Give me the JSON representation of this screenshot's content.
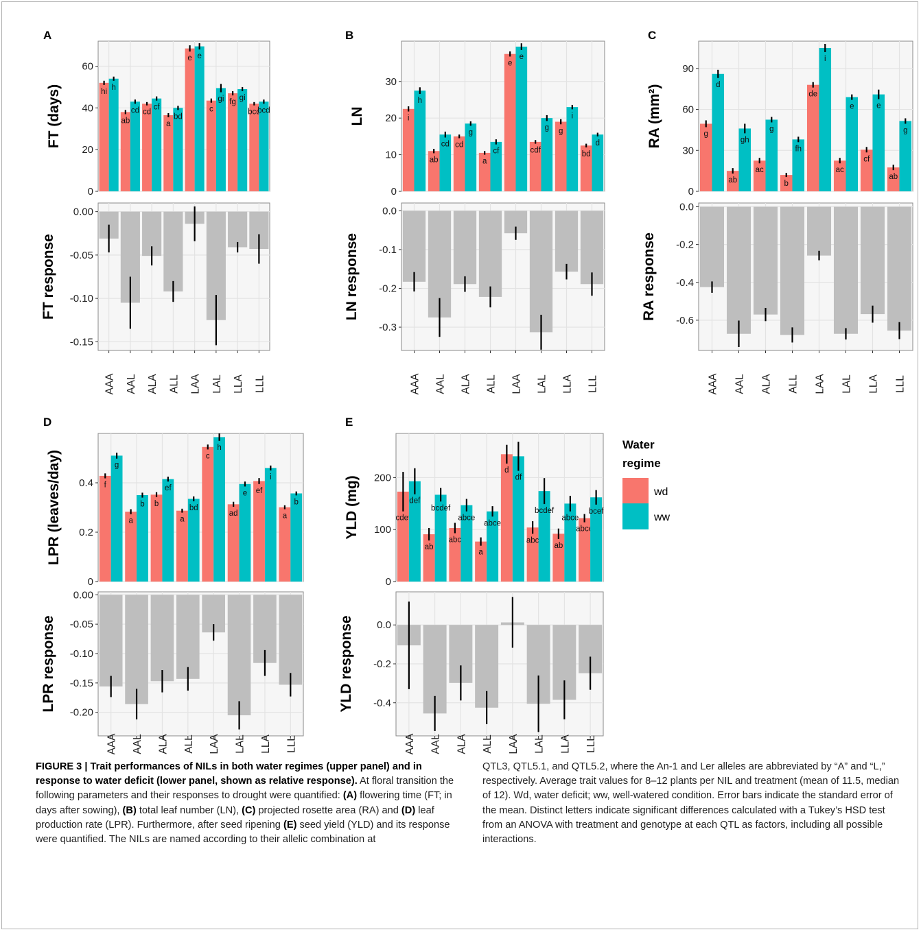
{
  "colors": {
    "wd": "#F8766D",
    "ww": "#00BFC4",
    "response": "#BEBEBE",
    "panel_bg": "#F6F6F6",
    "grid": "#E3E3E3"
  },
  "genotypes": [
    "AAA",
    "AAL",
    "ALA",
    "ALL",
    "LAA",
    "LAL",
    "LLA",
    "LLL"
  ],
  "legend": {
    "title_line1": "Water",
    "title_line2": "regime",
    "items": [
      {
        "key": "wd",
        "label": "wd",
        "color": "#F8766D"
      },
      {
        "key": "ww",
        "label": "ww",
        "color": "#00BFC4"
      }
    ]
  },
  "chart_data": [
    {
      "panel": "A",
      "top": {
        "type": "bar",
        "ylabel": "FT (days)",
        "ylim": [
          0,
          72
        ],
        "yticks": [
          0,
          20,
          40,
          60
        ],
        "tick_labels": [
          "0",
          "20",
          "40",
          "60"
        ],
        "series": [
          {
            "name": "wd",
            "values": [
              52,
              38,
              42,
              36.5,
              68.5,
              43.5,
              47,
              42
            ],
            "errors": [
              1,
              1,
              0.8,
              1,
              1.5,
              1,
              1,
              0.8
            ],
            "letters": [
              "hi",
              "ab",
              "cd",
              "a",
              "e",
              "c",
              "fg",
              "bcd"
            ]
          },
          {
            "name": "ww",
            "values": [
              54,
              43,
              44.5,
              40,
              69.5,
              49.5,
              49,
              43
            ],
            "errors": [
              1,
              1,
              1,
              1,
              1.5,
              2,
              1,
              1
            ],
            "letters": [
              "h",
              "cd",
              "cf",
              "bd",
              "e",
              "gi",
              "gi",
              "bcd"
            ]
          }
        ]
      },
      "bottom": {
        "type": "bar",
        "ylabel": "FT response",
        "ylim": [
          -0.16,
          0.01
        ],
        "yticks": [
          0,
          -0.05,
          -0.1,
          -0.15
        ],
        "tick_labels": [
          "0.00",
          "-0.05",
          "-0.10",
          "-0.15"
        ],
        "values": [
          -0.031,
          -0.105,
          -0.051,
          -0.092,
          -0.014,
          -0.125,
          -0.041,
          -0.043
        ],
        "errors": [
          0.016,
          0.03,
          0.011,
          0.012,
          0.02,
          0.029,
          0.006,
          0.017
        ]
      }
    },
    {
      "panel": "B",
      "top": {
        "type": "bar",
        "ylabel": "LN",
        "ylim": [
          0,
          41
        ],
        "yticks": [
          0,
          10,
          20,
          30
        ],
        "tick_labels": [
          "0",
          "10",
          "20",
          "30"
        ],
        "series": [
          {
            "name": "wd",
            "values": [
              22.5,
              11,
              15,
              10.5,
              37.5,
              13.5,
              19,
              12.5
            ],
            "errors": [
              0.7,
              0.6,
              0.5,
              0.5,
              0.7,
              0.5,
              0.7,
              0.5
            ],
            "letters": [
              "i",
              "ab",
              "cd",
              "a",
              "e",
              "cdf",
              "g",
              "bd"
            ]
          },
          {
            "name": "ww",
            "values": [
              27.5,
              15.5,
              18.5,
              13.5,
              39.5,
              20,
              23,
              15.5
            ],
            "errors": [
              0.9,
              0.8,
              0.6,
              0.7,
              0.9,
              0.8,
              0.6,
              0.5
            ],
            "letters": [
              "h",
              "cd",
              "g",
              "cf",
              "e",
              "g",
              "i",
              "d"
            ]
          }
        ]
      },
      "bottom": {
        "type": "bar",
        "ylabel": "LN response",
        "ylim": [
          -0.36,
          0.02
        ],
        "yticks": [
          0,
          -0.1,
          -0.2,
          -0.3
        ],
        "tick_labels": [
          "0.0",
          "-0.1",
          "-0.2",
          "-0.3"
        ],
        "values": [
          -0.183,
          -0.275,
          -0.189,
          -0.222,
          -0.058,
          -0.313,
          -0.157,
          -0.189
        ],
        "errors": [
          0.025,
          0.05,
          0.02,
          0.027,
          0.017,
          0.045,
          0.02,
          0.03
        ]
      }
    },
    {
      "panel": "C",
      "top": {
        "type": "bar",
        "ylabel": "RA (mm²)",
        "ylim": [
          0,
          110
        ],
        "yticks": [
          0,
          30,
          60,
          90
        ],
        "tick_labels": [
          "0",
          "30",
          "60",
          "90"
        ],
        "series": [
          {
            "name": "wd",
            "values": [
              49.5,
              15,
              22.5,
              12,
              78,
              22.5,
              30.5,
              17.5
            ],
            "errors": [
              2.5,
              2,
              2,
              1.5,
              2,
              2,
              2,
              2
            ],
            "letters": [
              "g",
              "ab",
              "ac",
              "b",
              "de",
              "ac",
              "cf",
              "ab"
            ]
          },
          {
            "name": "ww",
            "values": [
              86,
              46,
              52.5,
              38,
              105,
              69,
              71,
              51.5
            ],
            "errors": [
              3,
              3.5,
              2,
              2,
              3,
              2,
              3.5,
              2
            ],
            "letters": [
              "d",
              "gh",
              "g",
              "fh",
              "i",
              "e",
              "e",
              "g"
            ]
          }
        ]
      },
      "bottom": {
        "type": "bar",
        "ylabel": "RA response",
        "ylim": [
          -0.76,
          0.02
        ],
        "yticks": [
          0,
          -0.2,
          -0.4,
          -0.6
        ],
        "tick_labels": [
          "0.0",
          "-0.2",
          "-0.4",
          "-0.6"
        ],
        "values": [
          -0.425,
          -0.672,
          -0.57,
          -0.678,
          -0.258,
          -0.672,
          -0.568,
          -0.655
        ],
        "errors": [
          0.03,
          0.07,
          0.035,
          0.04,
          0.025,
          0.03,
          0.045,
          0.045
        ]
      }
    },
    {
      "panel": "D",
      "top": {
        "type": "bar",
        "ylabel": "LPR (leaves/day)",
        "ylim": [
          0,
          0.6
        ],
        "yticks": [
          0,
          0.2,
          0.4
        ],
        "tick_labels": [
          "0",
          "0.2",
          "0.4"
        ],
        "series": [
          {
            "name": "wd",
            "values": [
              0.428,
              0.283,
              0.352,
              0.287,
              0.545,
              0.313,
              0.407,
              0.301
            ],
            "errors": [
              0.01,
              0.01,
              0.01,
              0.008,
              0.01,
              0.01,
              0.012,
              0.008
            ],
            "letters": [
              "f",
              "a",
              "b",
              "a",
              "c",
              "ad",
              "ef",
              "a"
            ]
          },
          {
            "name": "ww",
            "values": [
              0.51,
              0.35,
              0.415,
              0.335,
              0.585,
              0.395,
              0.46,
              0.357
            ],
            "errors": [
              0.012,
              0.01,
              0.01,
              0.01,
              0.015,
              0.01,
              0.01,
              0.008
            ],
            "letters": [
              "g",
              "b",
              "ef",
              "bd",
              "h",
              "e",
              "i",
              "b"
            ]
          }
        ]
      },
      "bottom": {
        "type": "bar",
        "ylabel": "LPR response",
        "ylim": [
          -0.24,
          0.005
        ],
        "yticks": [
          0,
          -0.05,
          -0.1,
          -0.15,
          -0.2
        ],
        "tick_labels": [
          "0.00",
          "-0.05",
          "-0.10",
          "-0.15",
          "-0.20"
        ],
        "values": [
          -0.156,
          -0.186,
          -0.147,
          -0.143,
          -0.064,
          -0.205,
          -0.116,
          -0.153
        ],
        "errors": [
          0.018,
          0.026,
          0.019,
          0.02,
          0.014,
          0.024,
          0.022,
          0.02
        ]
      }
    },
    {
      "panel": "E",
      "top": {
        "type": "bar",
        "ylabel": "YLD (mg)",
        "ylim": [
          0,
          285
        ],
        "yticks": [
          0,
          100,
          200
        ],
        "tick_labels": [
          "0",
          "100",
          "200"
        ],
        "series": [
          {
            "name": "wd",
            "values": [
              173,
              91,
              103,
              77,
              245,
              104,
              92,
              122
            ],
            "errors": [
              38,
              12,
              10,
              8,
              18,
              12,
              10,
              8
            ],
            "letters": [
              "cdef",
              "ab",
              "abc",
              "a",
              "d",
              "abc",
              "ab",
              "abce"
            ]
          },
          {
            "name": "ww",
            "values": [
              193,
              167,
              147,
              135,
              241,
              174,
              150,
              162
            ],
            "errors": [
              25,
              13,
              12,
              10,
              28,
              25,
              15,
              14
            ],
            "letters": [
              "def",
              "bcdef",
              "abce",
              "abce",
              "df",
              "bcdef",
              "abce",
              "bcef"
            ]
          }
        ]
      },
      "bottom": {
        "type": "bar",
        "ylabel": "YLD response",
        "ylim": [
          -0.57,
          0.17
        ],
        "yticks": [
          0,
          -0.2,
          -0.4
        ],
        "tick_labels": [
          "0.0",
          "-0.2",
          "-0.4"
        ],
        "values": [
          -0.105,
          -0.455,
          -0.298,
          -0.425,
          0.013,
          -0.405,
          -0.385,
          -0.248
        ],
        "errors": [
          0.225,
          0.09,
          0.09,
          0.085,
          0.13,
          0.145,
          0.1,
          0.085
        ]
      }
    }
  ],
  "caption": {
    "col1_runs": [
      {
        "b": true,
        "t": "FIGURE 3 | Trait performances of NILs in both water regimes (upper panel) and in response to water deficit (lower panel, shown as relative response)."
      },
      {
        "b": false,
        "t": " At floral transition the following parameters and their responses to drought were quantified: "
      },
      {
        "b": true,
        "t": "(A)"
      },
      {
        "b": false,
        "t": " flowering time (FT; in days after sowing), "
      },
      {
        "b": true,
        "t": "(B)"
      },
      {
        "b": false,
        "t": " total leaf number (LN), "
      },
      {
        "b": true,
        "t": "(C)"
      },
      {
        "b": false,
        "t": " projected rosette area (RA) and "
      },
      {
        "b": true,
        "t": "(D)"
      },
      {
        "b": false,
        "t": " leaf production rate (LPR). Furthermore, after seed ripening "
      },
      {
        "b": true,
        "t": "(E)"
      },
      {
        "b": false,
        "t": " seed yield (YLD) and its response were quantified. The NILs are named according to their allelic combination at"
      }
    ],
    "col2_runs": [
      {
        "b": false,
        "t": "QTL3, QTL5.1, and QTL5.2, where the An-1 and Ler alleles are abbreviated by “A” and “L,” respectively. Average trait values for 8–12 plants per NIL and treatment (mean of 11.5, median of 12). Wd, water deficit; ww, well-watered condition. Error bars indicate the standard error of the mean. Distinct letters indicate significant differences calculated with a Tukey’s HSD test from an ANOVA with treatment and genotype at each QTL as factors, including all possible interactions."
      }
    ]
  }
}
